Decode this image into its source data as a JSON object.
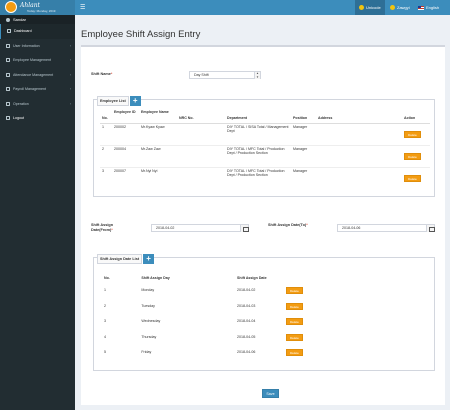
{
  "header": {
    "logo_text": "Ahlant",
    "logo_date": "Today: Monday, 2019",
    "langs": [
      {
        "label": "Unicode",
        "icon": "unicode-icon",
        "active": true
      },
      {
        "label": "Zawgyi",
        "icon": "zawgyi-icon",
        "active": false
      },
      {
        "label": "English",
        "icon": "english-flag-icon",
        "active": false
      }
    ]
  },
  "sidebar": {
    "user": "Sandar",
    "items": [
      {
        "label": "Dashboard",
        "icon": "dashboard-icon",
        "chevron": false
      },
      {
        "label": "User Information",
        "icon": "user-info-icon",
        "chevron": true
      },
      {
        "label": "Employee Management",
        "icon": "employee-icon",
        "chevron": true
      },
      {
        "label": "Attendance Management",
        "icon": "attendance-icon",
        "chevron": true
      },
      {
        "label": "Payroll Management",
        "icon": "payroll-icon",
        "chevron": true
      },
      {
        "label": "Operation",
        "icon": "operation-icon",
        "chevron": true
      },
      {
        "label": "Logout",
        "icon": "logout-icon",
        "chevron": false
      }
    ]
  },
  "page": {
    "title": "Employee Shift Assign Entry",
    "shift_name_label": "Shift Name",
    "shift_name_value": "Day Shift",
    "employee_list_title": "Employee List",
    "employee_table": {
      "headers": [
        "No.",
        "Employee ID",
        "Employee Name",
        "NRC No.",
        "Department",
        "Position",
        "Address",
        "Action"
      ],
      "rows": [
        {
          "no": "1",
          "id": "200002",
          "name": "Mr.Kyaw Kyaw",
          "nrc": "",
          "dept": "DIY TOTAL / SISA Total / Management Dept",
          "position": "Manager",
          "address": "",
          "action": "Delete"
        },
        {
          "no": "2",
          "id": "200004",
          "name": "Mr.Zaw Zaw",
          "nrc": "",
          "dept": "DIY TOTAL / MFC Total / Production Dept / Production Section",
          "position": "Manager",
          "address": "",
          "action": "Delete"
        },
        {
          "no": "3",
          "id": "200007",
          "name": "Mr.Nyi Nyi",
          "nrc": "",
          "dept": "DIY TOTAL / MFC Total / Production Dept / Production Section",
          "position": "Manager",
          "address": "",
          "action": "Delete"
        }
      ]
    },
    "date_from_label": "Shift Assign Date(From)",
    "date_from_value": "2018-04-02",
    "date_to_label": "Shift Assign Date(To)",
    "date_to_value": "2018-04-06",
    "assign_list_title": "Shift Assign Date List",
    "assign_table": {
      "headers": [
        "No.",
        "Shift Assign Day",
        "Shift Assign Date"
      ],
      "rows": [
        {
          "no": "1",
          "day": "Monday",
          "date": "2018-04-02",
          "action": "Delete"
        },
        {
          "no": "2",
          "day": "Tuesday",
          "date": "2018-04-03",
          "action": "Delete"
        },
        {
          "no": "3",
          "day": "Wednesday",
          "date": "2018-04-04",
          "action": "Delete"
        },
        {
          "no": "4",
          "day": "Thursday",
          "date": "2018-04-05",
          "action": "Delete"
        },
        {
          "no": "5",
          "day": "Friday",
          "date": "2018-04-06",
          "action": "Delete"
        }
      ]
    },
    "save_label": "Save"
  },
  "colors": {
    "topbar": "#3c8dbc",
    "sidebar": "#222d32",
    "delete": "#f39c12",
    "primary": "#3c8dbc"
  }
}
